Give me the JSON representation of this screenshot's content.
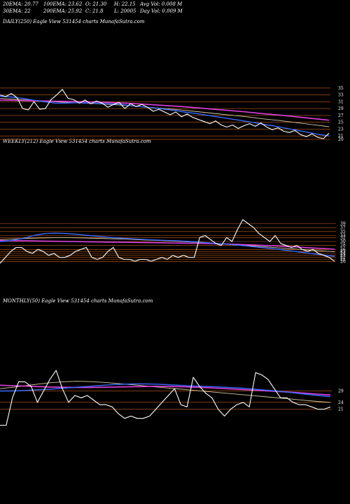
{
  "header": {
    "ema20": "20EMA: 20.77",
    "ema30": "30EMA: 22",
    "ema100": "100EMA: 23.62",
    "ema200": "200EMA: 25.92",
    "open": "O: 21.30",
    "close": "C: 21.8",
    "high": "H: 22.15",
    "low": "L: 20005",
    "avg_vol": "Avg Vol: 0.008  M",
    "day_vol": "Day Vol: 0.009 M"
  },
  "colors": {
    "background": "#000000",
    "price": "#ffffff",
    "ema_blue": "#3a6bff",
    "ema_magenta": "#e040e0",
    "ema_tan": "#d8c8a0",
    "gridline": "#c8601a"
  },
  "chart_data": [
    {
      "type": "line",
      "title": "DAILY(250) Eagle  View  531454  charts MunafaSutra.com",
      "y_ticks": [
        "35",
        "33",
        "31",
        "29",
        "27",
        "25",
        "23",
        "21",
        "20"
      ],
      "ylim": [
        19,
        37
      ],
      "grid": true,
      "series": [
        {
          "role": "price",
          "values": [
            33,
            32.5,
            33.4,
            32.2,
            29,
            28.6,
            31,
            28.8,
            29,
            31.6,
            33,
            34.6,
            32,
            31.6,
            30.6,
            31.5,
            30.4,
            31.2,
            30.6,
            29.4,
            30.2,
            30.8,
            29,
            30.4,
            29.6,
            30.2,
            29.4,
            28.2,
            28.8,
            28,
            27.2,
            28,
            26.6,
            27.4,
            26.4,
            25.8,
            25.2,
            24.6,
            25.4,
            24.2,
            23.6,
            24.2,
            23.2,
            24,
            24.6,
            23.8,
            24.8,
            23.6,
            22.8,
            23.4,
            22.4,
            22,
            22.6,
            21.4,
            20.8,
            21.6,
            20.6,
            20.2,
            21.8
          ]
        },
        {
          "role": "ema_short_blue",
          "values": [
            32.6,
            32.4,
            32,
            31.5,
            31,
            30.6,
            30.6,
            30.7,
            30.6,
            30.5,
            30.4,
            30.2,
            29.8,
            29.5,
            29.2,
            28.8,
            28.4,
            27.9,
            27.5,
            27,
            26.5,
            26,
            25.5,
            25,
            24.4,
            23.9,
            23.3,
            22.7,
            22.1,
            21.5,
            21
          ]
        },
        {
          "role": "ema_magenta",
          "values": [
            31.5,
            31.4,
            31.3,
            31.2,
            31.1,
            31,
            30.9,
            30.7,
            30.5,
            30.2,
            29.9,
            29.6,
            29.2,
            28.8,
            28.4,
            28,
            27.5,
            27.1,
            26.6,
            26.1,
            25.6
          ]
        },
        {
          "role": "ema_tan",
          "values": [
            32,
            31.7,
            31.4,
            31.1,
            30.8,
            30.6,
            30.4,
            30.1,
            29.8,
            29.4,
            29,
            28.6,
            28.1,
            27.6,
            27.1,
            26.6,
            26,
            25.5,
            24.9,
            24.3,
            23.7
          ]
        }
      ]
    },
    {
      "type": "line",
      "title": "WEEKLY(212) Eagle  View  531454  charts MunafaSutra.com",
      "y_ticks": [
        "39",
        "37",
        "35",
        "33",
        "32",
        "30",
        "28",
        "26",
        "25",
        "24",
        "23",
        "22",
        "21",
        "20"
      ],
      "ylim": [
        18,
        42
      ],
      "grid": true,
      "series": [
        {
          "role": "price",
          "values": [
            19,
            22,
            25,
            27,
            27,
            25,
            24,
            26,
            25,
            23,
            24,
            22,
            22,
            23,
            25,
            26,
            27,
            22,
            21,
            22,
            25,
            27,
            22,
            21,
            21,
            20,
            21,
            21,
            20,
            21,
            22,
            21,
            23,
            22,
            23,
            22,
            22,
            32,
            33,
            31,
            29,
            28,
            32,
            30,
            36,
            41,
            39,
            37,
            34,
            32,
            30,
            33,
            29,
            28,
            27,
            28,
            26,
            25,
            26,
            24,
            23,
            22,
            20
          ]
        },
        {
          "role": "ema_short_blue",
          "values": [
            30,
            30.5,
            31.5,
            33,
            34,
            34.2,
            34,
            33.6,
            33,
            32.5,
            32,
            31.6,
            31.3,
            31,
            30.7,
            30.5,
            30.3,
            30,
            29.6,
            29.2,
            28.8,
            28.3,
            27.8,
            27.2,
            26.6,
            26,
            25.3,
            24.6,
            23.9,
            23.2,
            22.5
          ]
        },
        {
          "role": "ema_magenta",
          "values": [
            30.5,
            30.4,
            30.3,
            30.2,
            30.1,
            30,
            29.9,
            29.8,
            29.7,
            29.6,
            29.5,
            29.4,
            29.3,
            29.2,
            29.1,
            29,
            28.8,
            28.6,
            28.3,
            28,
            27.7,
            27.3,
            26.9,
            26.5,
            26.1
          ]
        },
        {
          "role": "ema_tan",
          "values": [
            31,
            31.3,
            31.6,
            31.8,
            31.9,
            31.9,
            31.8,
            31.6,
            31.4,
            31.2,
            30.9,
            30.6,
            30.3,
            30,
            29.6,
            29.2,
            28.8,
            28.3,
            27.8,
            27.3,
            26.8,
            26.3,
            25.8,
            25.3,
            24.8
          ]
        }
      ]
    },
    {
      "type": "line",
      "title": "MONTHLY(50) Eagle  View  531454  charts MunafaSutra.com",
      "y_ticks": [
        "29",
        "24",
        "21"
      ],
      "ylim": [
        12,
        42
      ],
      "grid": true,
      "series": [
        {
          "role": "price",
          "values": [
            14,
            14,
            26,
            33,
            33,
            31,
            24,
            29,
            34,
            38,
            30,
            24,
            27,
            26,
            27,
            25,
            23,
            23,
            22,
            19,
            17,
            18,
            17,
            17,
            18,
            21,
            24,
            27,
            30,
            23,
            22,
            35,
            31,
            28,
            26,
            21,
            18,
            21,
            23,
            24,
            22,
            37,
            36,
            34,
            30,
            26,
            26,
            24,
            23,
            23,
            22,
            21,
            21,
            22
          ]
        },
        {
          "role": "ema_short_blue",
          "values": [
            29,
            29,
            29.2,
            29.5,
            29.8,
            30.2,
            30.6,
            31,
            31.4,
            31.8,
            32,
            32.1,
            32,
            31.8,
            31.5,
            31.2,
            31,
            30.8,
            30.5,
            30.2,
            29.8,
            29.3,
            28.8,
            28.2,
            27.6,
            27,
            26.5
          ]
        },
        {
          "role": "ema_magenta",
          "values": [
            31.5,
            31.3,
            31.1,
            30.9,
            30.7,
            30.6,
            30.5,
            30.5,
            30.6,
            30.7,
            30.8,
            30.9,
            31,
            31,
            30.9,
            30.7,
            30.5,
            30.2,
            29.9,
            29.6,
            29.3,
            29,
            28.7,
            28.4,
            28,
            27.6,
            27.2
          ]
        },
        {
          "role": "ema_tan",
          "values": [
            30,
            30.6,
            31.3,
            32,
            32.6,
            33,
            33.2,
            33.1,
            32.8,
            32.4,
            31.9,
            31.4,
            30.9,
            30.4,
            29.9,
            29.4,
            28.9,
            28.4,
            27.9,
            27.4,
            26.9,
            26.4,
            25.9,
            25.4,
            24.9,
            24.4,
            24
          ]
        }
      ]
    }
  ]
}
